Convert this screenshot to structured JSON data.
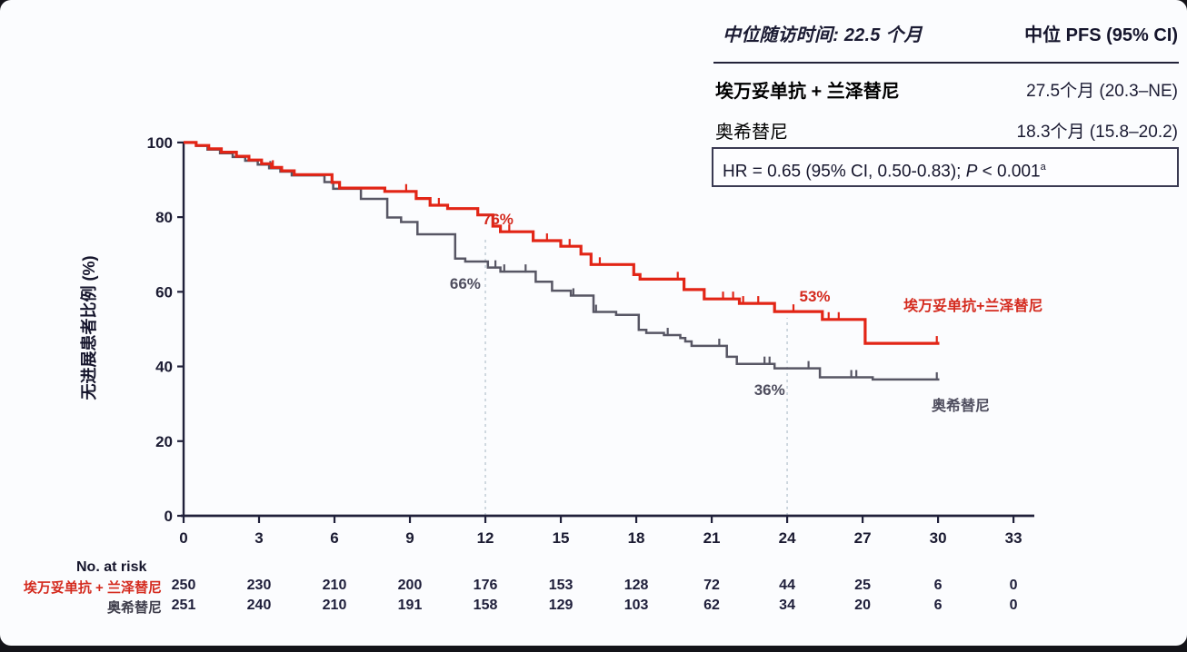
{
  "pfs_table": {
    "followup": "中位随访时间: 22.5 个月",
    "col_header": "中位 PFS (95% CI)",
    "rows": [
      {
        "name": "埃万妥单抗 + 兰泽替尼",
        "value": "27.5个月 (20.3–NE)",
        "color": "#d42a1e"
      },
      {
        "name": "奥希替尼",
        "value": "18.3个月 (15.8–20.2)",
        "color": "#1b1b33"
      }
    ]
  },
  "hr_box": {
    "prefix": "HR = 0.65 (95% CI, 0.50-0.83); ",
    "p_italic": "P",
    "p_rest": " < 0.001",
    "superscript": "a"
  },
  "chart_data": {
    "type": "line",
    "subtype": "kaplan-meier-step",
    "ylabel": "无进展患者比例 (%)",
    "xticks": [
      0,
      3,
      6,
      9,
      12,
      15,
      18,
      21,
      24,
      27,
      30,
      33
    ],
    "yticks": [
      0,
      20,
      40,
      60,
      80,
      100
    ],
    "xlim": [
      0,
      33
    ],
    "ylim": [
      0,
      100
    ],
    "landmark_dashed_x": [
      12,
      24
    ],
    "series": [
      {
        "name": "埃万妥单抗+兰泽替尼",
        "color": "#e22516",
        "stroke_width": 3.2,
        "steps": [
          [
            0,
            100
          ],
          [
            0.5,
            99.2
          ],
          [
            1.0,
            98.3
          ],
          [
            1.5,
            97.4
          ],
          [
            2.1,
            96.3
          ],
          [
            2.6,
            95.3
          ],
          [
            3.1,
            94.3
          ],
          [
            3.5,
            93.3
          ],
          [
            3.9,
            92.4
          ],
          [
            4.4,
            91.4
          ],
          [
            5.9,
            89.3
          ],
          [
            6.2,
            87.8
          ],
          [
            8.0,
            86.9
          ],
          [
            9.25,
            85.0
          ],
          [
            9.8,
            83.2
          ],
          [
            10.5,
            82.3
          ],
          [
            11.7,
            80.6
          ],
          [
            12.3,
            77.6
          ],
          [
            12.6,
            76.1
          ],
          [
            13.9,
            73.7
          ],
          [
            15.0,
            72.2
          ],
          [
            15.8,
            70.1
          ],
          [
            16.2,
            67.3
          ],
          [
            17.9,
            64.6
          ],
          [
            18.15,
            63.4
          ],
          [
            19.9,
            60.6
          ],
          [
            20.7,
            58.1
          ],
          [
            22.1,
            56.9
          ],
          [
            23.5,
            54.7
          ],
          [
            25.4,
            52.6
          ],
          [
            27.1,
            46.2
          ]
        ],
        "end_month": 30.05,
        "censor_months": [
          3.55,
          8.85,
          10.15,
          12.95,
          14.45,
          15.35,
          16.55,
          19.65,
          21.45,
          21.85,
          22.25,
          22.85,
          24.25,
          25.65,
          26.05,
          29.95
        ]
      },
      {
        "name": "奥希替尼",
        "color": "#575664",
        "stroke_width": 2.5,
        "steps": [
          [
            0,
            100
          ],
          [
            0.5,
            99.1
          ],
          [
            0.95,
            98.1
          ],
          [
            1.45,
            97.1
          ],
          [
            1.95,
            96.1
          ],
          [
            2.45,
            95.1
          ],
          [
            2.95,
            94.1
          ],
          [
            3.4,
            93.1
          ],
          [
            3.85,
            92.2
          ],
          [
            4.3,
            91.2
          ],
          [
            5.6,
            89.4
          ],
          [
            5.95,
            87.6
          ],
          [
            7.05,
            84.9
          ],
          [
            8.1,
            79.9
          ],
          [
            8.65,
            78.7
          ],
          [
            9.3,
            75.4
          ],
          [
            10.8,
            68.9
          ],
          [
            11.2,
            68.1
          ],
          [
            12.1,
            66.5
          ],
          [
            12.6,
            65.4
          ],
          [
            14.0,
            62.7
          ],
          [
            14.65,
            60.3
          ],
          [
            15.4,
            59.0
          ],
          [
            16.3,
            54.6
          ],
          [
            17.2,
            53.8
          ],
          [
            18.1,
            49.8
          ],
          [
            18.4,
            49.0
          ],
          [
            19.1,
            48.4
          ],
          [
            19.75,
            47.6
          ],
          [
            19.95,
            46.7
          ],
          [
            20.2,
            45.5
          ],
          [
            21.6,
            42.6
          ],
          [
            22.0,
            40.7
          ],
          [
            23.5,
            39.5
          ],
          [
            25.3,
            37.1
          ],
          [
            27.4,
            36.5
          ]
        ],
        "end_month": 30.05,
        "censor_months": [
          3.45,
          12.4,
          12.75,
          13.6,
          15.5,
          16.4,
          19.25,
          21.3,
          21.6,
          23.1,
          23.3,
          24.85,
          26.55,
          26.75,
          29.95
        ]
      }
    ],
    "annotations": [
      {
        "text": "76%",
        "month": 12.5,
        "pct": 79.2,
        "color": "#d42a1e",
        "size": 17
      },
      {
        "text": "66%",
        "month": 11.2,
        "pct": 62.0,
        "color": "#4e4d5e",
        "size": 17
      },
      {
        "text": "53%",
        "month": 25.1,
        "pct": 58.6,
        "color": "#d42a1e",
        "size": 17
      },
      {
        "text": "36%",
        "month": 23.3,
        "pct": 33.6,
        "color": "#4e4d5e",
        "size": 17
      },
      {
        "text": "埃万妥单抗+兰泽替尼",
        "month": 31.4,
        "pct": 56.7,
        "color": "#d42a1e",
        "size": 16
      },
      {
        "text": "奥希替尼",
        "month": 30.9,
        "pct": 29.9,
        "color": "#4e4d5e",
        "size": 16
      }
    ]
  },
  "risk_table": {
    "title": "No. at risk",
    "rows": [
      {
        "label": "埃万妥单抗 + 兰泽替尼",
        "color": "#d42a1e",
        "counts": [
          250,
          230,
          210,
          200,
          176,
          153,
          128,
          72,
          44,
          25,
          6,
          0
        ]
      },
      {
        "label": "奥希替尼",
        "color": "#3d3c4a",
        "counts": [
          251,
          240,
          210,
          191,
          158,
          129,
          103,
          62,
          34,
          20,
          6,
          0
        ]
      }
    ]
  }
}
